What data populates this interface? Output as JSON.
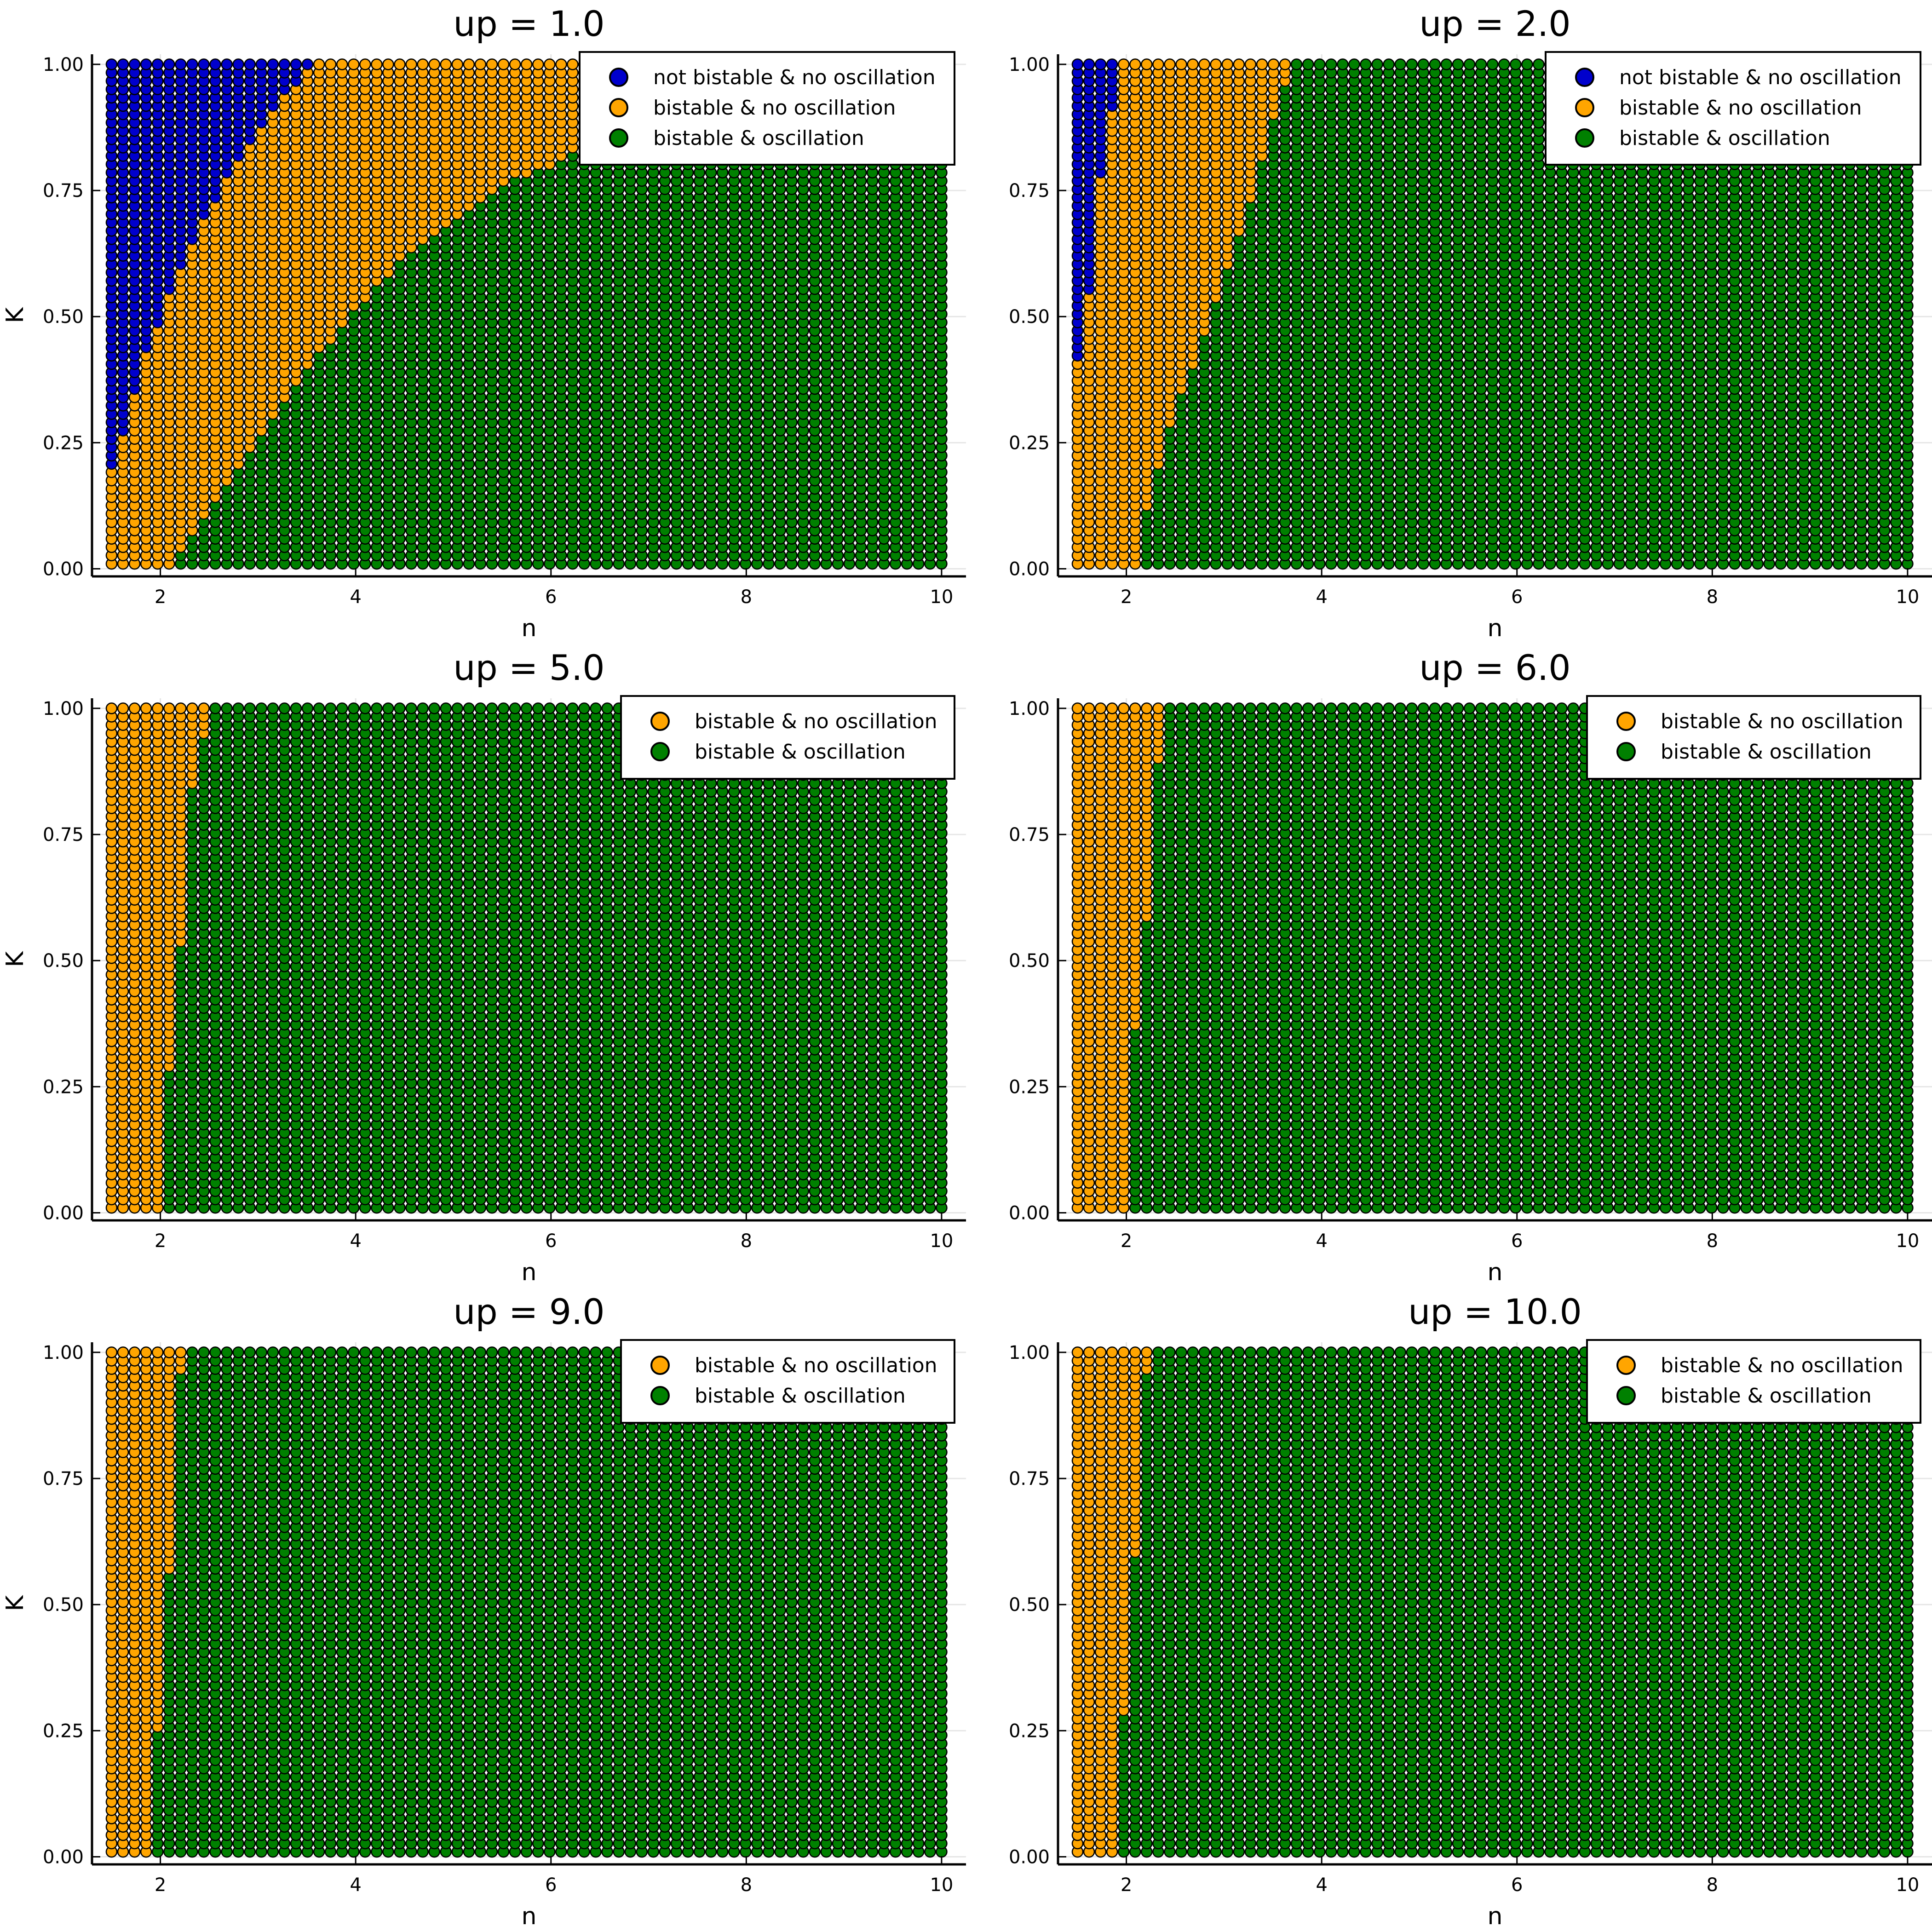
{
  "figure": {
    "grid": true,
    "colors": {
      "not_bistable_no_osc": "#0000cd",
      "bistable_no_osc": "#ffa500",
      "bistable_osc": "#008000"
    }
  },
  "chart_data": [
    {
      "type": "scatter",
      "title": "up = 1.0",
      "xlabel": "n",
      "ylabel": "K",
      "xlim": [
        1.3,
        10.25
      ],
      "ylim": [
        -0.015,
        1.02
      ],
      "xticks": [
        "2",
        "4",
        "6",
        "8",
        "10"
      ],
      "yticks": [
        "0.00",
        "0.25",
        "0.50",
        "0.75",
        "1.00"
      ],
      "grid_n": [
        1.5,
        10.0
      ],
      "grid_k": [
        0.01,
        1.0
      ],
      "legend": "top-right",
      "series": [
        {
          "name": "not bistable & no oscillation",
          "n_max": [
            [
              0.2,
              1.55
            ],
            [
              0.3,
              1.65
            ],
            [
              0.45,
              1.9
            ],
            [
              0.6,
              2.2
            ],
            [
              0.75,
              2.6
            ],
            [
              0.9,
              3.1
            ],
            [
              1.0,
              3.55
            ]
          ]
        },
        {
          "name": "bistable & no oscillation",
          "n_max": [
            [
              0.04,
              2.2
            ],
            [
              0.2,
              2.8
            ],
            [
              0.4,
              3.5
            ],
            [
              0.6,
              4.4
            ],
            [
              0.75,
              5.4
            ],
            [
              0.8,
              6.0
            ],
            [
              0.9,
              6.7
            ],
            [
              1.0,
              6.9
            ]
          ]
        },
        {
          "name": "bistable & oscillation",
          "n_max": [
            [
              1.0,
              10.0
            ]
          ]
        }
      ]
    },
    {
      "type": "scatter",
      "title": "up = 2.0",
      "xlabel": "n",
      "ylabel": "K",
      "xlim": [
        1.3,
        10.25
      ],
      "ylim": [
        -0.015,
        1.02
      ],
      "xticks": [
        "2",
        "4",
        "6",
        "8",
        "10"
      ],
      "yticks": [
        "0.00",
        "0.25",
        "0.50",
        "0.75",
        "1.00"
      ],
      "grid_n": [
        1.5,
        10.0
      ],
      "grid_k": [
        0.01,
        1.0
      ],
      "legend": "top-right",
      "series": [
        {
          "name": "not bistable & no oscillation",
          "n_max": [
            [
              0.42,
              1.55
            ],
            [
              0.6,
              1.65
            ],
            [
              0.8,
              1.75
            ],
            [
              1.0,
              1.95
            ]
          ]
        },
        {
          "name": "bistable & no oscillation",
          "n_max": [
            [
              0.04,
              2.1
            ],
            [
              0.25,
              2.4
            ],
            [
              0.5,
              2.85
            ],
            [
              0.75,
              3.3
            ],
            [
              0.95,
              3.6
            ],
            [
              1.0,
              3.7
            ]
          ]
        },
        {
          "name": "bistable & oscillation",
          "n_max": [
            [
              1.0,
              10.0
            ]
          ]
        }
      ]
    },
    {
      "type": "scatter",
      "title": "up = 5.0",
      "xlabel": "n",
      "ylabel": "K",
      "xlim": [
        1.3,
        10.25
      ],
      "ylim": [
        -0.015,
        1.02
      ],
      "xticks": [
        "2",
        "4",
        "6",
        "8",
        "10"
      ],
      "yticks": [
        "0.00",
        "0.25",
        "0.50",
        "0.75",
        "1.00"
      ],
      "grid_n": [
        1.5,
        10.0
      ],
      "grid_k": [
        0.01,
        1.0
      ],
      "legend": "top-right",
      "series": [
        {
          "name": "bistable & no oscillation",
          "n_max": [
            [
              0.16,
              2.0
            ],
            [
              0.3,
              2.1
            ],
            [
              0.5,
              2.2
            ],
            [
              0.82,
              2.3
            ],
            [
              1.0,
              2.5
            ]
          ]
        },
        {
          "name": "bistable & oscillation",
          "n_max": [
            [
              1.0,
              10.0
            ]
          ]
        }
      ]
    },
    {
      "type": "scatter",
      "title": "up = 6.0",
      "xlabel": "n",
      "ylabel": "K",
      "xlim": [
        1.3,
        10.25
      ],
      "ylim": [
        -0.015,
        1.02
      ],
      "xticks": [
        "2",
        "4",
        "6",
        "8",
        "10"
      ],
      "yticks": [
        "0.00",
        "0.25",
        "0.50",
        "0.75",
        "1.00"
      ],
      "grid_n": [
        1.5,
        10.0
      ],
      "grid_k": [
        0.01,
        1.0
      ],
      "legend": "top-right",
      "series": [
        {
          "name": "bistable & no oscillation",
          "n_max": [
            [
              0.2,
              2.0
            ],
            [
              0.38,
              2.1
            ],
            [
              0.56,
              2.2
            ],
            [
              0.85,
              2.3
            ],
            [
              1.0,
              2.4
            ]
          ]
        },
        {
          "name": "bistable & oscillation",
          "n_max": [
            [
              1.0,
              10.0
            ]
          ]
        }
      ]
    },
    {
      "type": "scatter",
      "title": "up = 9.0",
      "xlabel": "n",
      "ylabel": "K",
      "xlim": [
        1.3,
        10.25
      ],
      "ylim": [
        -0.015,
        1.02
      ],
      "xticks": [
        "2",
        "4",
        "6",
        "8",
        "10"
      ],
      "yticks": [
        "0.00",
        "0.25",
        "0.50",
        "0.75",
        "1.00"
      ],
      "grid_n": [
        1.5,
        10.0
      ],
      "grid_k": [
        0.01,
        1.0
      ],
      "legend": "top-right",
      "series": [
        {
          "name": "bistable & no oscillation",
          "n_max": [
            [
              0.08,
              1.9
            ],
            [
              0.32,
              2.0
            ],
            [
              0.58,
              2.1
            ],
            [
              0.96,
              2.2
            ],
            [
              1.0,
              2.3
            ]
          ]
        },
        {
          "name": "bistable & oscillation",
          "n_max": [
            [
              1.0,
              10.0
            ]
          ]
        }
      ]
    },
    {
      "type": "scatter",
      "title": "up = 10.0",
      "xlabel": "n",
      "ylabel": "K",
      "xlim": [
        1.3,
        10.25
      ],
      "ylim": [
        -0.015,
        1.02
      ],
      "xticks": [
        "2",
        "4",
        "6",
        "8",
        "10"
      ],
      "yticks": [
        "0.00",
        "0.25",
        "0.50",
        "0.75",
        "1.00"
      ],
      "grid_n": [
        1.5,
        10.0
      ],
      "grid_k": [
        0.01,
        1.0
      ],
      "legend": "top-right",
      "series": [
        {
          "name": "bistable & no oscillation",
          "n_max": [
            [
              0.1,
              1.9
            ],
            [
              0.36,
              2.0
            ],
            [
              0.62,
              2.1
            ],
            [
              0.96,
              2.2
            ],
            [
              1.0,
              2.3
            ]
          ]
        },
        {
          "name": "bistable & oscillation",
          "n_max": [
            [
              1.0,
              10.0
            ]
          ]
        }
      ]
    }
  ]
}
